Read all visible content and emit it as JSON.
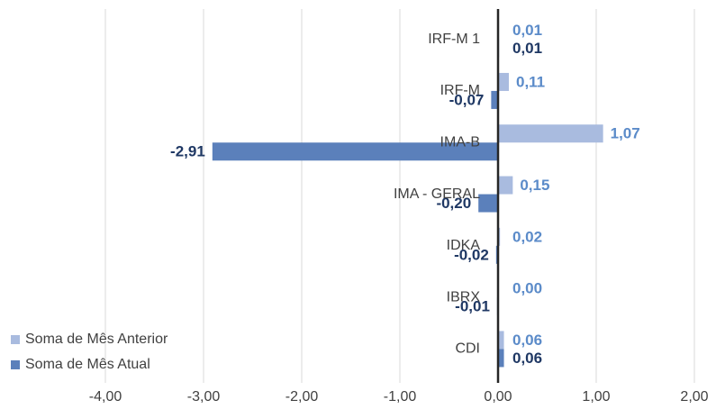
{
  "chart_data": {
    "type": "bar",
    "orientation": "horizontal",
    "categories": [
      "IRF-M 1",
      "IRF-M",
      "IMA-B",
      "IMA - GERAL",
      "IDKA",
      "IBRX",
      "CDI"
    ],
    "series": [
      {
        "name": "Soma de Mês Anterior",
        "color": "#a9bbdf",
        "label_color": "#5b8bc9",
        "values": [
          0.01,
          0.11,
          1.07,
          0.15,
          0.02,
          0.0,
          0.06
        ],
        "value_labels": [
          "0,01",
          "0,11",
          "1,07",
          "0,15",
          "0,02",
          "0,00",
          "0,06"
        ]
      },
      {
        "name": "Soma de Mês Atual",
        "color": "#5b80bb",
        "label_color": "#1f3864",
        "values": [
          0.01,
          -0.07,
          -2.91,
          -0.2,
          -0.02,
          -0.01,
          0.06
        ],
        "value_labels": [
          "0,01",
          "-0,07",
          "-2,91",
          "-0,20",
          "-0,02",
          "-0,01",
          "0,06"
        ]
      }
    ],
    "xlim": [
      -4,
      2
    ],
    "xticks": [
      {
        "value": -4,
        "label": "-4,00"
      },
      {
        "value": -3,
        "label": "-3,00"
      },
      {
        "value": -2,
        "label": "-2,00"
      },
      {
        "value": -1,
        "label": "-1,00"
      },
      {
        "value": 0,
        "label": "0,00"
      },
      {
        "value": 1,
        "label": "1,00"
      },
      {
        "value": 2,
        "label": "2,00"
      }
    ],
    "grid": true,
    "legend": "lower-left"
  }
}
